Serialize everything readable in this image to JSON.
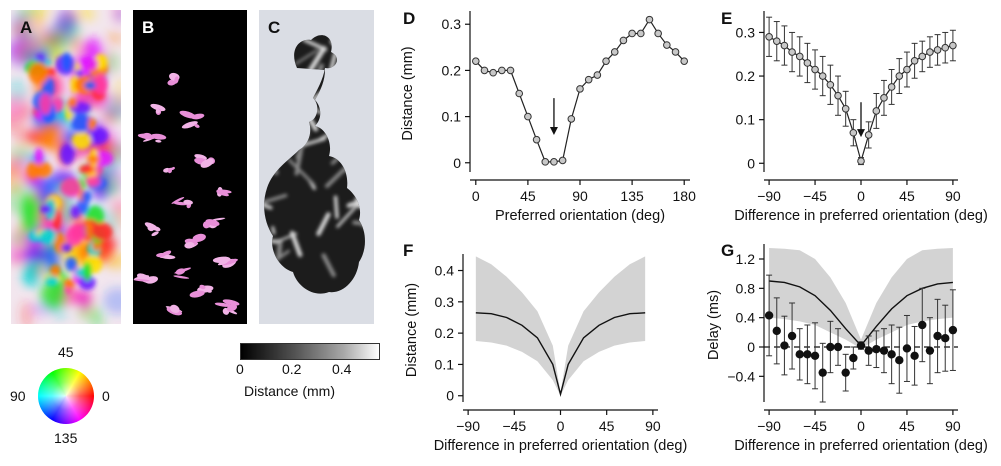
{
  "panels": {
    "A": {
      "label": "A"
    },
    "B": {
      "label": "B"
    },
    "C": {
      "label": "C"
    }
  },
  "orientation_key": {
    "top": "45",
    "right": "0",
    "bottom": "135",
    "left": "90"
  },
  "distance_colorbar": {
    "ticks": [
      "0",
      "0.2",
      "0.4"
    ],
    "label": "Distance (mm)"
  },
  "chart_data": [
    {
      "id": "D",
      "panel_label": "D",
      "type": "line",
      "xlabel": "Preferred orientation (deg)",
      "ylabel": "Distance (mm)",
      "xlim": [
        -5,
        185
      ],
      "ylim": [
        -0.02,
        0.32
      ],
      "xticks": [
        0,
        45,
        90,
        135,
        180
      ],
      "yticks": [
        0,
        0.1,
        0.2,
        0.3
      ],
      "annotations": [
        {
          "type": "arrow",
          "x": 67.5,
          "from_y": 0.14,
          "to_y": 0.06
        }
      ],
      "series": [
        {
          "x": [
            0,
            7.5,
            15,
            22.5,
            30,
            37.5,
            45,
            52.5,
            60,
            67.5,
            75,
            82.5,
            90,
            97.5,
            105,
            112.5,
            120,
            127.5,
            135,
            142.5,
            150,
            157.5,
            165,
            172.5,
            180
          ],
          "y": [
            0.22,
            0.2,
            0.195,
            0.2,
            0.2,
            0.15,
            0.1,
            0.05,
            0.002,
            0.002,
            0.005,
            0.095,
            0.16,
            0.18,
            0.19,
            0.22,
            0.24,
            0.265,
            0.28,
            0.28,
            0.31,
            0.28,
            0.255,
            0.24,
            0.22
          ]
        }
      ]
    },
    {
      "id": "E",
      "panel_label": "E",
      "type": "line",
      "xlabel": "Difference in preferred orientation (deg)",
      "ylabel": "",
      "xlim": [
        -95,
        95
      ],
      "ylim": [
        -0.02,
        0.34
      ],
      "xticks": [
        -90,
        -45,
        0,
        45,
        90
      ],
      "yticks": [
        0,
        0.1,
        0.2,
        0.3
      ],
      "annotations": [
        {
          "type": "arrow",
          "x": 0,
          "from_y": 0.14,
          "to_y": 0.06
        }
      ],
      "series": [
        {
          "x": [
            -90,
            -82.5,
            -75,
            -67.5,
            -60,
            -52.5,
            -45,
            -37.5,
            -30,
            -22.5,
            -15,
            -7.5,
            0,
            7.5,
            15,
            22.5,
            30,
            37.5,
            45,
            52.5,
            60,
            67.5,
            75,
            82.5,
            90
          ],
          "y": [
            0.29,
            0.28,
            0.27,
            0.255,
            0.245,
            0.23,
            0.215,
            0.2,
            0.18,
            0.155,
            0.125,
            0.07,
            0.005,
            0.065,
            0.12,
            0.15,
            0.175,
            0.2,
            0.215,
            0.235,
            0.245,
            0.255,
            0.26,
            0.265,
            0.27
          ],
          "err": [
            0.045,
            0.045,
            0.045,
            0.045,
            0.045,
            0.045,
            0.045,
            0.045,
            0.045,
            0.045,
            0.04,
            0.03,
            0.008,
            0.03,
            0.04,
            0.04,
            0.04,
            0.04,
            0.04,
            0.04,
            0.035,
            0.035,
            0.035,
            0.035,
            0.035
          ]
        }
      ]
    },
    {
      "id": "F",
      "panel_label": "F",
      "type": "area",
      "xlabel": "Difference in preferred orientation (deg)",
      "ylabel": "Distance (mm)",
      "xlim": [
        -95,
        95
      ],
      "ylim": [
        -0.02,
        0.44
      ],
      "xticks": [
        -90,
        -45,
        0,
        45,
        90
      ],
      "yticks": [
        0,
        0.1,
        0.2,
        0.3,
        0.4
      ],
      "series": [
        {
          "x": [
            -82.5,
            -67.5,
            -52.5,
            -37.5,
            -22.5,
            -7.5,
            0,
            7.5,
            22.5,
            37.5,
            52.5,
            67.5,
            82.5
          ],
          "y": [
            0.265,
            0.262,
            0.25,
            0.225,
            0.185,
            0.1,
            0.005,
            0.1,
            0.185,
            0.225,
            0.25,
            0.262,
            0.265
          ],
          "upper": [
            0.445,
            0.42,
            0.38,
            0.33,
            0.27,
            0.16,
            0.01,
            0.16,
            0.27,
            0.33,
            0.38,
            0.42,
            0.445
          ],
          "lower": [
            0.175,
            0.17,
            0.16,
            0.14,
            0.11,
            0.05,
            0.0,
            0.05,
            0.11,
            0.14,
            0.16,
            0.17,
            0.175
          ]
        }
      ]
    },
    {
      "id": "G",
      "panel_label": "G",
      "type": "scatter",
      "xlabel": "Difference in preferred orientation (deg)",
      "ylabel": "Delay (ms)",
      "xlim": [
        -95,
        95
      ],
      "ylim": [
        -0.75,
        1.35
      ],
      "xticks": [
        -90,
        -45,
        0,
        45,
        90
      ],
      "yticks": [
        -0.4,
        0,
        0.4,
        0.8,
        1.2
      ],
      "ytick_labels": [
        "−0.4",
        "0",
        "0.4",
        "0.8",
        "1.2"
      ],
      "reference_line": {
        "y": 0,
        "style": "dashed"
      },
      "band": {
        "x": [
          -90,
          -75,
          -60,
          -45,
          -30,
          -15,
          0,
          15,
          30,
          45,
          60,
          75,
          90
        ],
        "mean": [
          0.9,
          0.88,
          0.82,
          0.7,
          0.5,
          0.25,
          0.02,
          0.28,
          0.52,
          0.7,
          0.8,
          0.86,
          0.88
        ],
        "upper": [
          1.35,
          1.34,
          1.32,
          1.2,
          0.95,
          0.6,
          0.1,
          0.6,
          0.95,
          1.2,
          1.32,
          1.34,
          1.35
        ],
        "lower": [
          0.4,
          0.38,
          0.35,
          0.3,
          0.2,
          0.1,
          -0.02,
          0.1,
          0.2,
          0.3,
          0.35,
          0.38,
          0.4
        ]
      },
      "series": [
        {
          "x": [
            -90,
            -82.5,
            -75,
            -67.5,
            -60,
            -52.5,
            -45,
            -37.5,
            -30,
            -22.5,
            -15,
            -7.5,
            0,
            7.5,
            15,
            22.5,
            30,
            37.5,
            45,
            52.5,
            60,
            67.5,
            75,
            82.5,
            90
          ],
          "y": [
            0.43,
            0.22,
            0.02,
            0.15,
            -0.1,
            -0.1,
            -0.12,
            -0.35,
            0.0,
            0.0,
            -0.35,
            -0.15,
            0.02,
            -0.05,
            -0.03,
            -0.05,
            -0.1,
            -0.18,
            -0.02,
            -0.12,
            0.3,
            -0.05,
            0.15,
            0.12,
            0.23
          ],
          "err": [
            0.55,
            0.45,
            0.4,
            0.45,
            0.35,
            0.4,
            0.45,
            0.4,
            0.35,
            0.25,
            0.25,
            0.15,
            0.05,
            0.2,
            0.25,
            0.3,
            0.4,
            0.45,
            0.45,
            0.4,
            0.5,
            0.45,
            0.5,
            0.45,
            0.55
          ]
        }
      ]
    }
  ]
}
